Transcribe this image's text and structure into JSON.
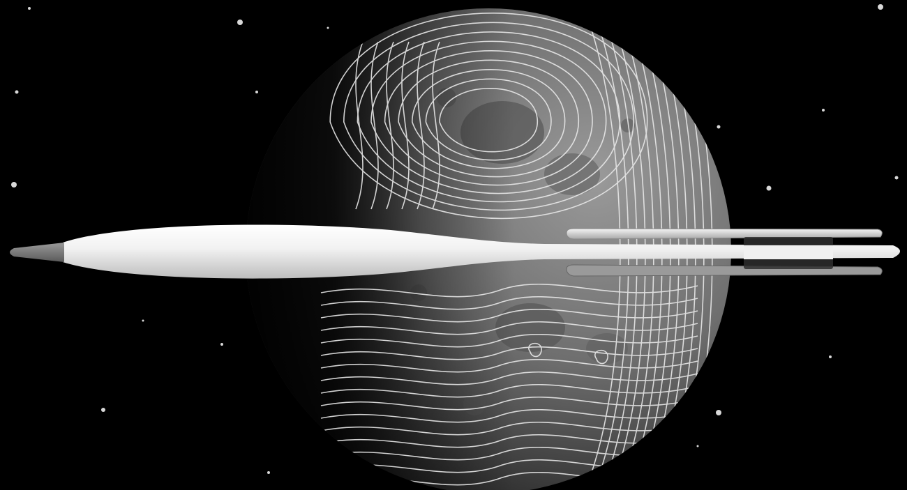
{
  "scene": {
    "subject": "pen-icon",
    "background": "moon-contour-icon",
    "colors": {
      "space": "#000000",
      "moon_lit": "#8a8a8a",
      "moon_dark": "#151515",
      "contour": "#e8e8e8",
      "pen_body": "#f2f2f2",
      "pen_tip": "#7a7a7a",
      "clip_band": "#2e2e2e",
      "star": "#d8d8d8"
    }
  }
}
